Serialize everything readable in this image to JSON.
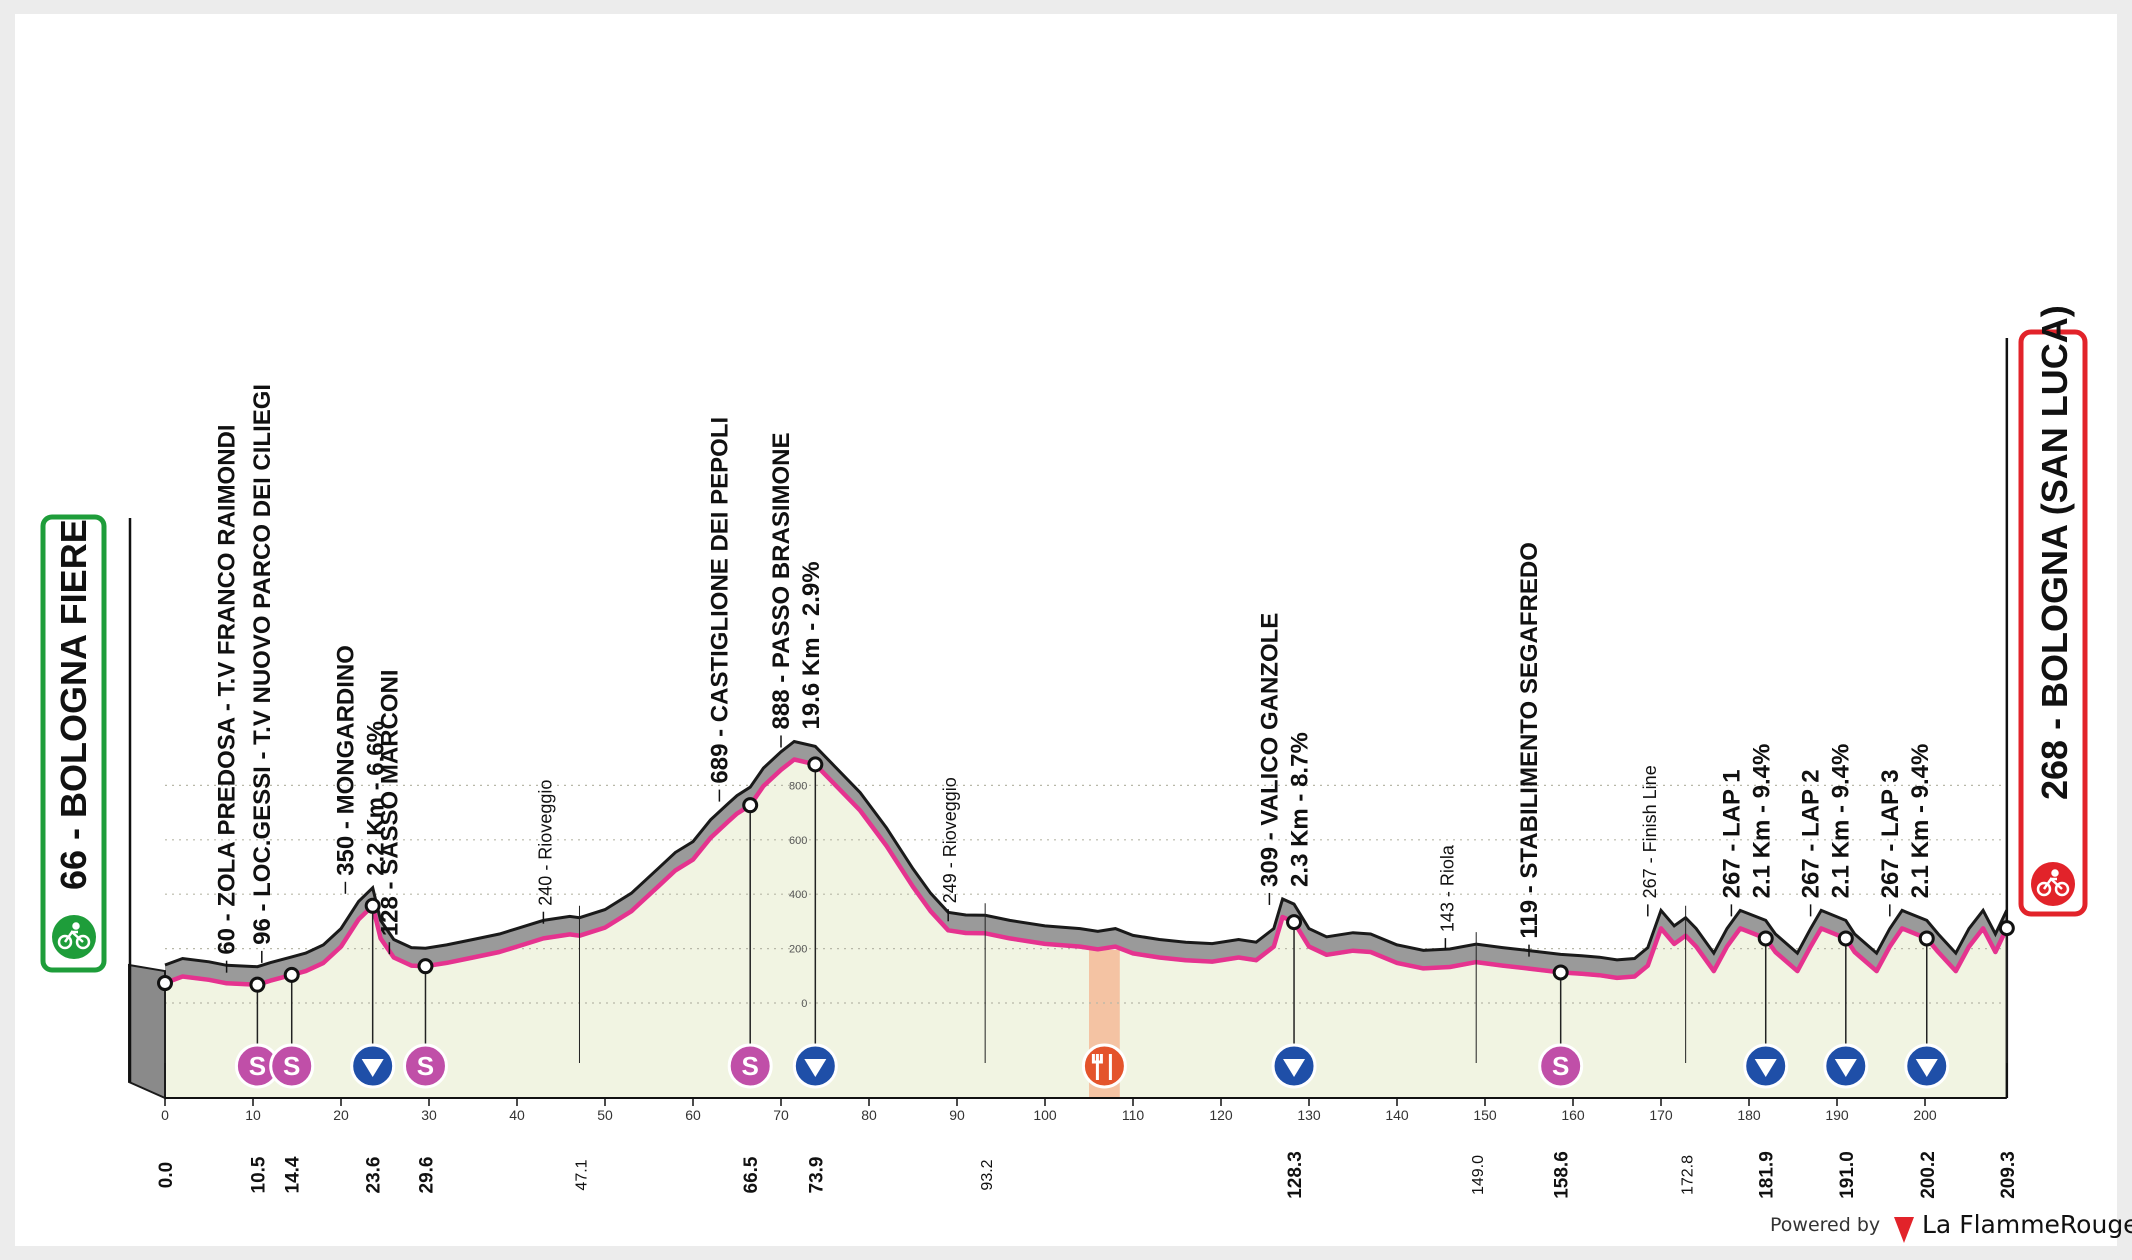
{
  "chart_data": {
    "type": "area",
    "x_unit": "km",
    "y_unit": "m",
    "xlim": [
      0,
      209.3
    ],
    "ylim": [
      -400,
      1400
    ],
    "x_ticks": [
      0,
      10,
      20,
      30,
      40,
      50,
      60,
      70,
      80,
      90,
      100,
      110,
      120,
      130,
      140,
      150,
      160,
      170,
      180,
      190,
      200
    ],
    "y_ticks": [
      0,
      200,
      400,
      600,
      800
    ],
    "profile": [
      [
        0,
        66
      ],
      [
        2,
        90
      ],
      [
        5,
        78
      ],
      [
        7,
        65
      ],
      [
        10.5,
        60
      ],
      [
        12,
        75
      ],
      [
        14.4,
        96
      ],
      [
        16,
        110
      ],
      [
        18,
        140
      ],
      [
        20,
        200
      ],
      [
        22,
        300
      ],
      [
        23.6,
        350
      ],
      [
        24.5,
        230
      ],
      [
        26,
        160
      ],
      [
        28,
        130
      ],
      [
        29.6,
        128
      ],
      [
        32,
        140
      ],
      [
        35,
        160
      ],
      [
        38,
        180
      ],
      [
        40,
        200
      ],
      [
        43,
        230
      ],
      [
        46,
        245
      ],
      [
        47.1,
        240
      ],
      [
        50,
        270
      ],
      [
        53,
        330
      ],
      [
        56,
        420
      ],
      [
        58,
        480
      ],
      [
        60,
        520
      ],
      [
        62,
        600
      ],
      [
        64,
        660
      ],
      [
        65,
        689
      ],
      [
        66.5,
        720
      ],
      [
        68,
        790
      ],
      [
        70,
        850
      ],
      [
        71.5,
        888
      ],
      [
        73.9,
        870
      ],
      [
        76,
        800
      ],
      [
        79,
        700
      ],
      [
        82,
        570
      ],
      [
        85,
        420
      ],
      [
        87,
        330
      ],
      [
        89,
        260
      ],
      [
        91,
        250
      ],
      [
        93.2,
        249
      ],
      [
        96,
        230
      ],
      [
        100,
        210
      ],
      [
        104,
        200
      ],
      [
        106,
        190
      ],
      [
        108,
        200
      ],
      [
        110,
        175
      ],
      [
        113,
        160
      ],
      [
        116,
        150
      ],
      [
        119,
        145
      ],
      [
        122,
        160
      ],
      [
        124,
        150
      ],
      [
        126,
        200
      ],
      [
        127,
        309
      ],
      [
        128.3,
        290
      ],
      [
        130,
        200
      ],
      [
        132,
        170
      ],
      [
        135,
        185
      ],
      [
        137,
        180
      ],
      [
        140,
        140
      ],
      [
        143,
        120
      ],
      [
        146,
        125
      ],
      [
        149,
        143
      ],
      [
        152,
        130
      ],
      [
        155,
        119
      ],
      [
        158.6,
        105
      ],
      [
        161,
        100
      ],
      [
        163,
        95
      ],
      [
        165,
        85
      ],
      [
        167,
        90
      ],
      [
        168.5,
        130
      ],
      [
        170,
        267
      ],
      [
        171.5,
        210
      ],
      [
        172.8,
        240
      ],
      [
        174,
        200
      ],
      [
        176,
        110
      ],
      [
        177.5,
        200
      ],
      [
        179,
        267
      ],
      [
        181.9,
        230
      ],
      [
        183,
        180
      ],
      [
        185.5,
        110
      ],
      [
        187,
        200
      ],
      [
        188.2,
        267
      ],
      [
        191,
        230
      ],
      [
        192,
        180
      ],
      [
        194.5,
        110
      ],
      [
        196,
        200
      ],
      [
        197.4,
        267
      ],
      [
        200.2,
        230
      ],
      [
        201.5,
        180
      ],
      [
        203.5,
        110
      ],
      [
        205,
        200
      ],
      [
        206.6,
        267
      ],
      [
        208,
        180
      ],
      [
        209.3,
        268
      ]
    ],
    "start": {
      "label": "66 - BOLOGNA FIERE",
      "km": 0,
      "alt": 66
    },
    "finish": {
      "label": "268 - BOLOGNA (SAN LUCA)",
      "km": 209.3,
      "alt": 268
    },
    "waypoints": [
      {
        "km": 7,
        "alt": 60,
        "lines": [
          "60 - ZOLA PREDOSA - T.V FRANCO RAIMONDI"
        ],
        "style": "bold"
      },
      {
        "km": 11,
        "alt": 96,
        "lines": [
          "96 - LOC.GESSI - T.V NUOVO PARCO DEI CILIEGI"
        ],
        "style": "bold"
      },
      {
        "km": 20.5,
        "alt": 350,
        "lines": [
          "350 - MONGARDINO",
          "2.2 Km - 6.6%"
        ],
        "style": "bold"
      },
      {
        "km": 25.5,
        "alt": 128,
        "lines": [
          "128 - SASSO MARCONI"
        ],
        "style": "bold"
      },
      {
        "km": 43,
        "alt": 240,
        "lines": [
          "240 - Rioveggio"
        ],
        "style": "light"
      },
      {
        "km": 63,
        "alt": 689,
        "lines": [
          "689 - CASTIGLIONE DEI PEPOLI"
        ],
        "style": "bold"
      },
      {
        "km": 70,
        "alt": 888,
        "lines": [
          "888 - PASSO BRASIMONE",
          "19.6 Km - 2.9%"
        ],
        "style": "bold"
      },
      {
        "km": 89,
        "alt": 249,
        "lines": [
          "249 - Rioveggio"
        ],
        "style": "light"
      },
      {
        "km": 125.5,
        "alt": 309,
        "lines": [
          "309 - VALICO GANZOLE",
          "2.3 Km - 8.7%"
        ],
        "style": "bold"
      },
      {
        "km": 145.5,
        "alt": 143,
        "lines": [
          "143 - Riola"
        ],
        "style": "light"
      },
      {
        "km": 155,
        "alt": 119,
        "lines": [
          "119 - STABILIMENTO SEGAFREDO"
        ],
        "style": "bold"
      },
      {
        "km": 168.5,
        "alt": 267,
        "lines": [
          "267 - Finish Line"
        ],
        "style": "light"
      },
      {
        "km": 178,
        "alt": 267,
        "lines": [
          "267 - LAP 1",
          "2.1 Km - 9.4%"
        ],
        "style": "bold"
      },
      {
        "km": 187,
        "alt": 267,
        "lines": [
          "267 - LAP 2",
          "2.1 Km - 9.4%"
        ],
        "style": "bold"
      },
      {
        "km": 196,
        "alt": 267,
        "lines": [
          "267 - LAP 3",
          "2.1 Km - 9.4%"
        ],
        "style": "bold"
      }
    ],
    "km_labels": [
      {
        "km": 0.0,
        "text": "0.0",
        "style": "bold"
      },
      {
        "km": 10.5,
        "text": "10.5",
        "style": "bold"
      },
      {
        "km": 14.4,
        "text": "14.4",
        "style": "bold"
      },
      {
        "km": 23.6,
        "text": "23.6",
        "style": "bold"
      },
      {
        "km": 29.6,
        "text": "29.6",
        "style": "bold"
      },
      {
        "km": 47.1,
        "text": "47.1",
        "style": "light"
      },
      {
        "km": 66.5,
        "text": "66.5",
        "style": "bold"
      },
      {
        "km": 73.9,
        "text": "73.9",
        "style": "bold"
      },
      {
        "km": 93.2,
        "text": "93.2",
        "style": "light"
      },
      {
        "km": 128.3,
        "text": "128.3",
        "style": "bold"
      },
      {
        "km": 149.0,
        "text": "149.0",
        "style": "light"
      },
      {
        "km": 158.6,
        "text": "158.6",
        "style": "bold"
      },
      {
        "km": 172.8,
        "text": "172.8",
        "style": "light"
      },
      {
        "km": 181.9,
        "text": "181.9",
        "style": "bold"
      },
      {
        "km": 191.0,
        "text": "191.0",
        "style": "bold"
      },
      {
        "km": 200.2,
        "text": "200.2",
        "style": "bold"
      },
      {
        "km": 209.3,
        "text": "209.3",
        "style": "bold"
      }
    ],
    "markers": [
      {
        "km": 10.5,
        "type": "sprint",
        "symbol": "S"
      },
      {
        "km": 14.4,
        "type": "sprint",
        "symbol": "S"
      },
      {
        "km": 23.6,
        "type": "gpm",
        "symbol": ""
      },
      {
        "km": 29.6,
        "type": "sprint",
        "symbol": "S"
      },
      {
        "km": 66.5,
        "type": "sprint",
        "symbol": "S"
      },
      {
        "km": 73.9,
        "type": "gpm",
        "symbol": ""
      },
      {
        "km": 128.3,
        "type": "gpm",
        "symbol": ""
      },
      {
        "km": 158.6,
        "type": "sprint",
        "symbol": "S"
      },
      {
        "km": 181.9,
        "type": "gpm",
        "symbol": ""
      },
      {
        "km": 191.0,
        "type": "gpm",
        "symbol": ""
      },
      {
        "km": 200.2,
        "type": "gpm",
        "symbol": ""
      }
    ],
    "feed_zone": {
      "km_from": 105,
      "km_to": 108.5
    },
    "colors": {
      "profile_fill": "#9a9a9a",
      "road": "#e5338f",
      "ground": "#f1f4e2",
      "start_green": "#1e9d3a",
      "finish_red": "#e2232a",
      "sprint": "#c04fa8",
      "gpm": "#1f4fa8",
      "feed": "#f4c3a3"
    },
    "footer": {
      "powered": "Powered by",
      "brand": "La FlammeRouge"
    }
  }
}
